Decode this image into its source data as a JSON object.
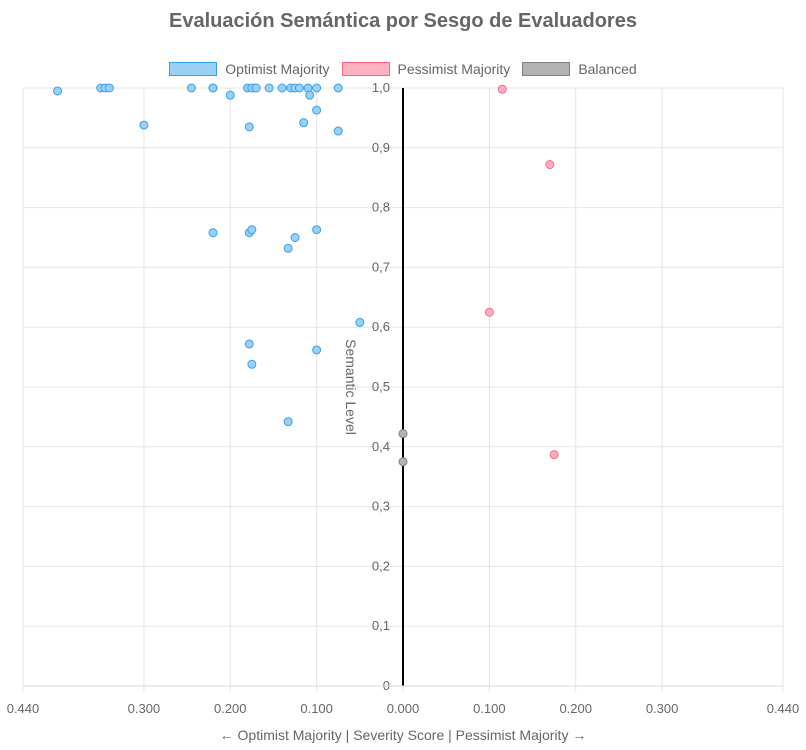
{
  "chart_data": {
    "type": "scatter",
    "title": "Evaluación Semántica por Sesgo de Evaluadores",
    "xlabel": "← Optimist Majority | Severity Score | Pessimist Majority →",
    "ylabel": "Semantic Level",
    "xlim": [
      -0.44,
      0.44
    ],
    "ylim": [
      0,
      1
    ],
    "x_tick_labels": [
      "0.440",
      "0.300",
      "0.200",
      "0.100",
      "0.000",
      "0.100",
      "0.200",
      "0.300",
      "0.440"
    ],
    "y_tick_labels": [
      "0",
      "0,1",
      "0,2",
      "0,3",
      "0,4",
      "0,5",
      "0,6",
      "0,7",
      "0,8",
      "0,9",
      "1,0"
    ],
    "grid": true,
    "legend_position": "top",
    "series": [
      {
        "name": "Optimist Majority",
        "color": "#36a2eb",
        "fill": "#9ad0f5",
        "points": [
          {
            "x": -0.4,
            "y": 0.995
          },
          {
            "x": -0.35,
            "y": 1.0
          },
          {
            "x": -0.345,
            "y": 1.0
          },
          {
            "x": -0.34,
            "y": 1.0
          },
          {
            "x": -0.245,
            "y": 1.0
          },
          {
            "x": -0.22,
            "y": 1.0
          },
          {
            "x": -0.22,
            "y": 1.0
          },
          {
            "x": -0.2,
            "y": 0.988
          },
          {
            "x": -0.18,
            "y": 1.0
          },
          {
            "x": -0.175,
            "y": 1.0
          },
          {
            "x": -0.17,
            "y": 1.0
          },
          {
            "x": -0.155,
            "y": 1.0
          },
          {
            "x": -0.14,
            "y": 1.0
          },
          {
            "x": -0.13,
            "y": 1.0
          },
          {
            "x": -0.125,
            "y": 1.0
          },
          {
            "x": -0.12,
            "y": 1.0
          },
          {
            "x": -0.11,
            "y": 1.0
          },
          {
            "x": -0.108,
            "y": 0.988
          },
          {
            "x": -0.1,
            "y": 1.0
          },
          {
            "x": -0.075,
            "y": 1.0
          },
          {
            "x": -0.1,
            "y": 0.963
          },
          {
            "x": -0.3,
            "y": 0.938
          },
          {
            "x": -0.178,
            "y": 0.935
          },
          {
            "x": -0.115,
            "y": 0.942
          },
          {
            "x": -0.075,
            "y": 0.928
          },
          {
            "x": -0.22,
            "y": 0.758
          },
          {
            "x": -0.178,
            "y": 0.758
          },
          {
            "x": -0.175,
            "y": 0.763
          },
          {
            "x": -0.125,
            "y": 0.75
          },
          {
            "x": -0.1,
            "y": 0.763
          },
          {
            "x": -0.133,
            "y": 0.732
          },
          {
            "x": -0.05,
            "y": 0.608
          },
          {
            "x": -0.178,
            "y": 0.572
          },
          {
            "x": -0.175,
            "y": 0.538
          },
          {
            "x": -0.1,
            "y": 0.562
          },
          {
            "x": -0.133,
            "y": 0.442
          }
        ]
      },
      {
        "name": "Pessimist Majority",
        "color": "#ff6384",
        "fill": "#ffb1c1",
        "points": [
          {
            "x": 0.115,
            "y": 0.998
          },
          {
            "x": 0.17,
            "y": 0.872
          },
          {
            "x": 0.1,
            "y": 0.625
          },
          {
            "x": 0.175,
            "y": 0.387
          }
        ]
      },
      {
        "name": "Balanced",
        "color": "#808080",
        "fill": "#b3b3b3",
        "points": [
          {
            "x": 0.0,
            "y": 0.422
          },
          {
            "x": 0.0,
            "y": 0.375
          }
        ]
      }
    ]
  }
}
